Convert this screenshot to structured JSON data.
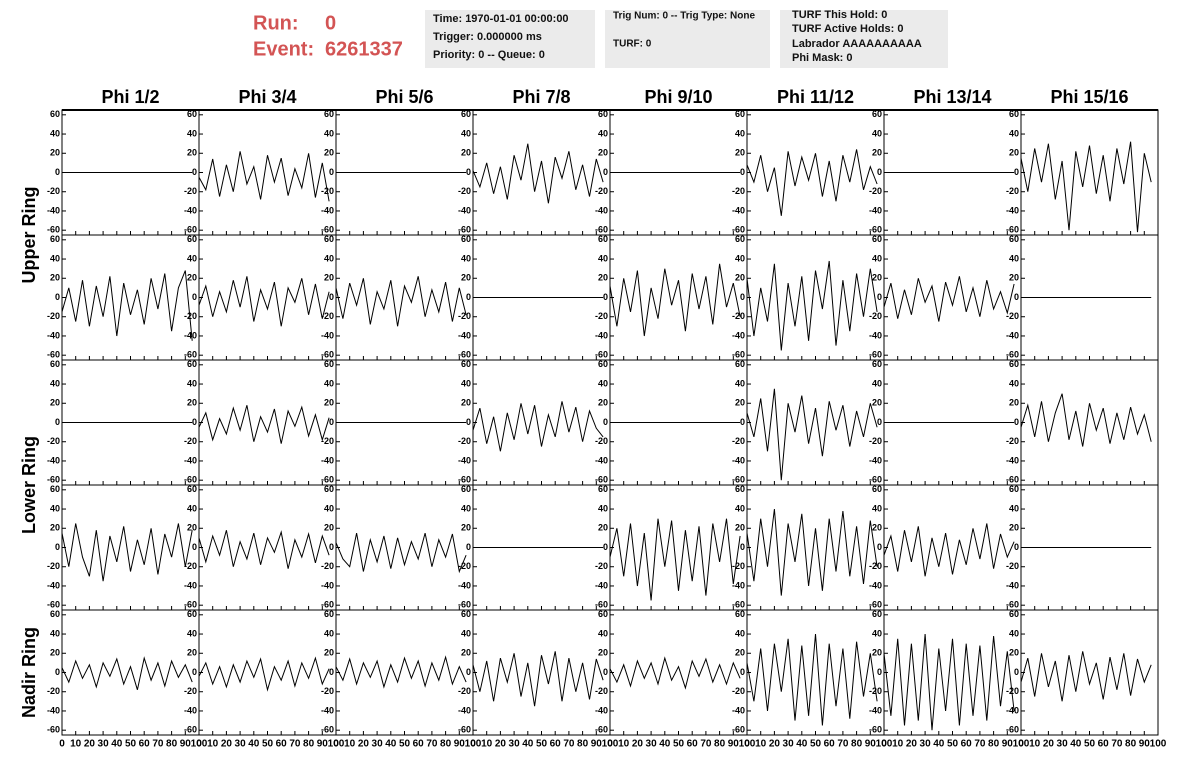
{
  "header": {
    "run_label": "Run:",
    "run": 0,
    "event_label": "Event:",
    "event": 6261337,
    "info_boxes": [
      [
        "Time: 1970-01-01 00:00:00",
        "Trigger: 0.000000 ms",
        "Priority: 0 -- Queue: 0"
      ],
      [
        "Trig Num: 0 -- Trig Type: None",
        "TURF: 0"
      ],
      [
        "TURF This Hold: 0",
        "TURF Active Holds: 0",
        "Labrador AAAAAAAAAA",
        "Phi Mask: 0"
      ]
    ]
  },
  "chart_data": {
    "type": "line",
    "color": "#000000",
    "columns": [
      "Phi 1/2",
      "Phi 3/4",
      "Phi 5/6",
      "Phi 7/8",
      "Phi 9/10",
      "Phi 11/12",
      "Phi 13/14",
      "Phi 15/16"
    ],
    "ring_labels": [
      "Upper Ring",
      "Lower Ring",
      "Nadir Ring"
    ],
    "xlim": [
      0,
      100
    ],
    "xticks": [
      0,
      10,
      20,
      30,
      40,
      50,
      60,
      70,
      80,
      90,
      100
    ],
    "ylim": [
      -65,
      65
    ],
    "yticks": [
      -60,
      -40,
      -20,
      0,
      20,
      40,
      60
    ],
    "x": [
      0,
      5,
      10,
      15,
      20,
      25,
      30,
      35,
      40,
      45,
      50,
      55,
      60,
      65,
      70,
      75,
      80,
      85,
      90,
      95
    ],
    "panels": [
      [
        [
          0,
          0,
          0,
          0,
          0,
          0,
          0,
          0,
          0,
          0,
          0,
          0,
          0,
          0,
          0,
          0,
          0,
          0,
          0,
          0
        ],
        [
          -5,
          -18,
          14,
          -25,
          8,
          -20,
          22,
          -12,
          6,
          -28,
          18,
          -10,
          15,
          -24,
          4,
          -16,
          20,
          -26,
          10,
          -30
        ],
        [
          0,
          0,
          0,
          0,
          0,
          0,
          0,
          0,
          0,
          0,
          0,
          0,
          0,
          0,
          0,
          0,
          0,
          0,
          0,
          0
        ],
        [
          2,
          -15,
          10,
          -22,
          6,
          -28,
          18,
          -8,
          30,
          -20,
          12,
          -32,
          16,
          -6,
          22,
          -18,
          8,
          -25,
          14,
          -10
        ],
        [
          0,
          0,
          0,
          0,
          0,
          0,
          0,
          0,
          0,
          0,
          0,
          0,
          0,
          0,
          0,
          0,
          0,
          0,
          0,
          0
        ],
        [
          8,
          -10,
          18,
          -20,
          5,
          -45,
          22,
          -14,
          16,
          -8,
          20,
          -25,
          12,
          -30,
          18,
          -10,
          24,
          -18,
          6,
          -12
        ],
        [
          0,
          0,
          0,
          0,
          0,
          0,
          0,
          0,
          0,
          0,
          0,
          0,
          0,
          0,
          0,
          0,
          0,
          0,
          0,
          0
        ],
        [
          15,
          -20,
          25,
          -10,
          30,
          -28,
          12,
          -60,
          22,
          -15,
          28,
          -22,
          18,
          -30,
          25,
          -12,
          32,
          -62,
          20,
          -10
        ]
      ],
      [
        [
          -15,
          10,
          -25,
          18,
          -30,
          12,
          -20,
          22,
          -40,
          15,
          -18,
          8,
          -28,
          20,
          -12,
          25,
          -35,
          10,
          28,
          -45
        ],
        [
          -8,
          12,
          -20,
          6,
          -15,
          18,
          -10,
          22,
          -25,
          8,
          -12,
          16,
          -30,
          10,
          -5,
          20,
          -18,
          14,
          -22,
          6
        ],
        [
          10,
          -22,
          15,
          -8,
          20,
          -28,
          6,
          -12,
          18,
          -30,
          12,
          -5,
          22,
          -20,
          8,
          -15,
          16,
          -25,
          10,
          -18
        ],
        [
          0,
          0,
          0,
          0,
          0,
          0,
          0,
          0,
          0,
          0,
          0,
          0,
          0,
          0,
          0,
          0,
          0,
          0,
          0,
          0
        ],
        [
          12,
          -30,
          20,
          -15,
          28,
          -40,
          10,
          -22,
          30,
          -8,
          18,
          -35,
          25,
          -12,
          22,
          -28,
          35,
          -10,
          15,
          -20
        ],
        [
          20,
          -40,
          10,
          -25,
          35,
          -55,
          15,
          -30,
          22,
          -45,
          28,
          -12,
          38,
          -50,
          18,
          -35,
          25,
          -20,
          30,
          -15
        ],
        [
          -10,
          15,
          -22,
          8,
          -18,
          20,
          -5,
          12,
          -25,
          16,
          -8,
          22,
          -15,
          10,
          -20,
          18,
          -12,
          6,
          -16,
          14
        ],
        [
          0,
          0,
          0,
          0,
          0,
          0,
          0,
          0,
          0,
          0,
          0,
          0,
          0,
          0,
          0,
          0,
          0,
          0,
          0,
          0
        ]
      ],
      [
        [
          0,
          0,
          0,
          0,
          0,
          0,
          0,
          0,
          0,
          0,
          0,
          0,
          0,
          0,
          0,
          0,
          0,
          0,
          0,
          0
        ],
        [
          -5,
          10,
          -18,
          4,
          -12,
          15,
          -8,
          18,
          -20,
          6,
          -10,
          14,
          -22,
          12,
          -4,
          16,
          -14,
          8,
          -18,
          5
        ],
        [
          0,
          0,
          0,
          0,
          0,
          0,
          0,
          0,
          0,
          0,
          0,
          0,
          0,
          0,
          0,
          0,
          0,
          0,
          0,
          0
        ],
        [
          -8,
          15,
          -22,
          6,
          -30,
          10,
          -18,
          20,
          -12,
          18,
          -25,
          8,
          -15,
          22,
          -10,
          16,
          -20,
          12,
          -6,
          -15
        ],
        [
          0,
          0,
          0,
          0,
          0,
          0,
          0,
          0,
          0,
          0,
          0,
          0,
          0,
          0,
          0,
          0,
          0,
          0,
          0,
          0
        ],
        [
          10,
          -15,
          25,
          -30,
          35,
          -60,
          20,
          -10,
          28,
          -22,
          15,
          -35,
          22,
          -8,
          18,
          -25,
          12,
          -15,
          20,
          -5
        ],
        [
          0,
          0,
          0,
          0,
          0,
          0,
          0,
          0,
          0,
          0,
          0,
          0,
          0,
          0,
          0,
          0,
          0,
          0,
          0,
          0
        ],
        [
          -5,
          18,
          -15,
          22,
          -20,
          10,
          30,
          -18,
          12,
          -25,
          20,
          -8,
          15,
          -22,
          10,
          -18,
          16,
          -12,
          8,
          -20
        ]
      ],
      [
        [
          15,
          -20,
          25,
          -10,
          -30,
          18,
          -35,
          12,
          -15,
          22,
          -25,
          8,
          -18,
          20,
          -28,
          14,
          -10,
          25,
          -20,
          18
        ],
        [
          10,
          -15,
          12,
          -8,
          18,
          -20,
          6,
          -12,
          15,
          -18,
          10,
          -5,
          16,
          -22,
          8,
          -10,
          14,
          -16,
          12,
          -8
        ],
        [
          5,
          -12,
          -20,
          15,
          -25,
          8,
          -15,
          12,
          -22,
          10,
          -18,
          6,
          -12,
          15,
          -20,
          8,
          -10,
          14,
          -25,
          -8
        ],
        [
          0,
          0,
          0,
          0,
          0,
          0,
          0,
          0,
          0,
          0,
          0,
          0,
          0,
          0,
          0,
          0,
          0,
          0,
          0,
          0
        ],
        [
          -10,
          20,
          -30,
          25,
          -40,
          15,
          -55,
          30,
          -20,
          28,
          -45,
          18,
          -35,
          22,
          -50,
          25,
          -15,
          30,
          -38,
          12
        ],
        [
          15,
          -35,
          30,
          -20,
          40,
          -50,
          25,
          -15,
          35,
          -40,
          20,
          -45,
          30,
          -25,
          38,
          -30,
          22,
          -38,
          28,
          -20
        ],
        [
          -8,
          12,
          -25,
          18,
          -15,
          22,
          -30,
          10,
          -20,
          15,
          -28,
          8,
          -18,
          20,
          -12,
          25,
          -22,
          14,
          -10,
          6
        ],
        [
          0,
          0,
          0,
          0,
          0,
          0,
          0,
          0,
          0,
          0,
          0,
          0,
          0,
          0,
          0,
          0,
          0,
          0,
          0,
          0
        ]
      ],
      [
        [
          5,
          -10,
          12,
          -6,
          8,
          -15,
          10,
          -4,
          14,
          -12,
          6,
          -18,
          15,
          -8,
          10,
          -14,
          12,
          -5,
          8,
          -10
        ],
        [
          -4,
          10,
          -12,
          6,
          -15,
          8,
          -10,
          12,
          -5,
          14,
          -18,
          6,
          -8,
          12,
          -14,
          10,
          -6,
          15,
          -12,
          4
        ],
        [
          6,
          -8,
          14,
          -12,
          10,
          -5,
          12,
          -15,
          8,
          -10,
          15,
          -6,
          12,
          -14,
          10,
          -8,
          16,
          -12,
          6,
          -10
        ],
        [
          8,
          -20,
          12,
          -30,
          15,
          -10,
          20,
          -25,
          10,
          -35,
          18,
          -12,
          22,
          -30,
          15,
          -20,
          10,
          -28,
          14,
          -8
        ],
        [
          4,
          -10,
          8,
          -14,
          12,
          -6,
          10,
          -12,
          15,
          -8,
          6,
          -16,
          12,
          -4,
          14,
          -10,
          8,
          -12,
          10,
          -6
        ],
        [
          10,
          -30,
          25,
          -40,
          30,
          -20,
          35,
          -50,
          28,
          -45,
          40,
          -55,
          30,
          -35,
          25,
          -48,
          32,
          -25,
          20,
          -30
        ],
        [
          20,
          -45,
          35,
          -55,
          30,
          -50,
          40,
          -60,
          25,
          -40,
          35,
          -55,
          30,
          -45,
          28,
          -50,
          38,
          -35,
          22,
          -40
        ],
        [
          -10,
          15,
          -25,
          20,
          -15,
          12,
          -30,
          18,
          -20,
          22,
          -12,
          10,
          -28,
          16,
          -18,
          20,
          -24,
          14,
          -10,
          8
        ]
      ]
    ]
  }
}
